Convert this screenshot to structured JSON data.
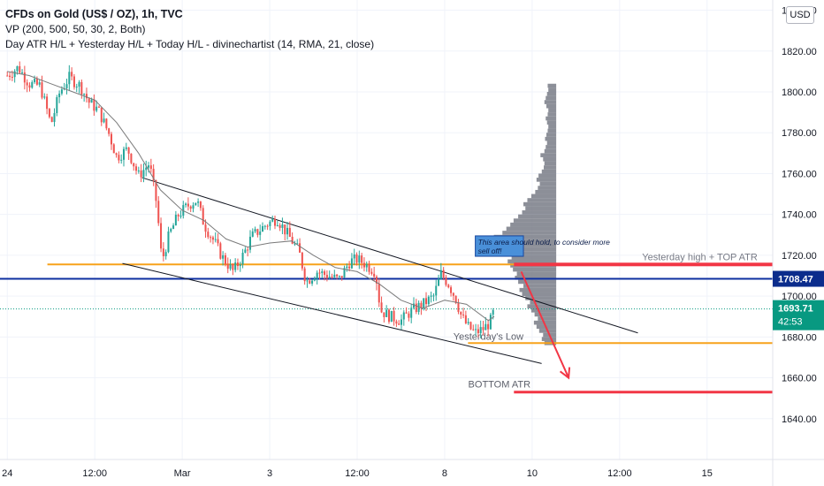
{
  "header": {
    "symbol": "CFDs on Gold (US$ / OZ), 1h, TVC",
    "indicator_vp": "VP (200, 500, 50, 30, 2, Both)",
    "indicator_atr": "Day ATR H/L + Yesterday H/L + Today H/L - divinechartist (14, RMA, 21, close)"
  },
  "currency_label": "USD",
  "colors": {
    "up": "#26a69a",
    "down": "#ef5350",
    "orange": "#f7a21b",
    "navy": "#0d2fa0",
    "red": "#f23645",
    "volume_profile": "#787b86",
    "ma": "#7b7b7b",
    "price_green": "#089981",
    "price_navy": "#0b2c8c"
  },
  "chart_data": {
    "type": "candlestick",
    "ylim": [
      1620,
      1845
    ],
    "y_ticks": [
      1640,
      1660,
      1680,
      1700,
      1720,
      1740,
      1760,
      1780,
      1800,
      1820,
      1840
    ],
    "x_tick_labels": [
      {
        "label": "24",
        "x": 0
      },
      {
        "label": "12:00",
        "x": 12
      },
      {
        "label": "Mar",
        "x": 24
      },
      {
        "label": "3",
        "x": 36
      },
      {
        "label": "12:00",
        "x": 48
      },
      {
        "label": "8",
        "x": 60
      },
      {
        "label": "10",
        "x": 72
      },
      {
        "label": "12:00",
        "x": 84
      },
      {
        "label": "15",
        "x": 96
      }
    ],
    "x_range": [
      -1,
      105
    ],
    "close_path": [
      [
        0,
        1808
      ],
      [
        1.5,
        1812
      ],
      [
        3,
        1804
      ],
      [
        4.5,
        1803
      ],
      [
        6,
        1784
      ],
      [
        7.2,
        1800
      ],
      [
        8.5,
        1807
      ],
      [
        10,
        1803
      ],
      [
        11.2,
        1795
      ],
      [
        12.5,
        1791
      ],
      [
        14,
        1779
      ],
      [
        15,
        1768
      ],
      [
        16.5,
        1772
      ],
      [
        18,
        1759
      ],
      [
        19.5,
        1765
      ],
      [
        20.5,
        1745
      ],
      [
        21.2,
        1717
      ],
      [
        22.2,
        1730
      ],
      [
        23.5,
        1740
      ],
      [
        25,
        1745
      ],
      [
        26,
        1747
      ],
      [
        27,
        1735
      ],
      [
        28.5,
        1726
      ],
      [
        29.5,
        1719
      ],
      [
        31,
        1712
      ],
      [
        32.5,
        1721
      ],
      [
        33.5,
        1729
      ],
      [
        34.5,
        1732
      ],
      [
        35.5,
        1735
      ],
      [
        37,
        1738
      ],
      [
        38.5,
        1730
      ],
      [
        40,
        1722
      ],
      [
        41,
        1707
      ],
      [
        42.5,
        1712
      ],
      [
        44,
        1710
      ],
      [
        45.5,
        1708
      ],
      [
        47,
        1717
      ],
      [
        48,
        1718
      ],
      [
        49,
        1716
      ],
      [
        50.5,
        1712
      ],
      [
        51.2,
        1693
      ],
      [
        52.5,
        1690
      ],
      [
        54,
        1688
      ],
      [
        55.5,
        1693
      ],
      [
        57,
        1696
      ],
      [
        58.5,
        1700
      ],
      [
        59.5,
        1711
      ],
      [
        60.5,
        1706
      ],
      [
        61.5,
        1699
      ],
      [
        62.3,
        1690
      ],
      [
        63.2,
        1685
      ],
      [
        64.2,
        1682
      ],
      [
        65.3,
        1684
      ],
      [
        66.2,
        1687
      ],
      [
        66.8,
        1693
      ]
    ],
    "ma_path": [
      [
        0,
        1810
      ],
      [
        3,
        1808
      ],
      [
        6,
        1804
      ],
      [
        9,
        1800
      ],
      [
        12,
        1796
      ],
      [
        15,
        1785
      ],
      [
        18,
        1770
      ],
      [
        21,
        1752
      ],
      [
        24,
        1742
      ],
      [
        27,
        1737
      ],
      [
        30,
        1728
      ],
      [
        33,
        1724
      ],
      [
        36,
        1726
      ],
      [
        39,
        1727
      ],
      [
        42,
        1720
      ],
      [
        45,
        1714
      ],
      [
        48,
        1712
      ],
      [
        51,
        1706
      ],
      [
        54,
        1698
      ],
      [
        57,
        1694
      ],
      [
        60,
        1698
      ],
      [
        63,
        1696
      ],
      [
        66,
        1688
      ],
      [
        66.8,
        1690
      ]
    ],
    "levels": [
      {
        "name": "yesterday-high-top-atr",
        "y": 1715.5,
        "label": "Yesterday high + TOP ATR"
      },
      {
        "name": "navy-level",
        "y": 1708.47,
        "label": "1708.47"
      },
      {
        "name": "yesterday-low",
        "y": 1677,
        "label": "Yesterday's Low"
      },
      {
        "name": "bottom-atr",
        "y": 1653,
        "label": "BOTTOM ATR"
      }
    ],
    "channel": {
      "upper": [
        [
          18.5,
          1758
        ],
        [
          86.5,
          1682
        ]
      ],
      "lower": [
        [
          15.8,
          1716
        ],
        [
          73.3,
          1667
        ]
      ]
    },
    "arrow": {
      "from": [
        70.5,
        1712
      ],
      "to": [
        77,
        1660
      ]
    },
    "annotation": "This area should hold, to consider more sell off!",
    "price_labels": {
      "level": "1708.47",
      "last": "1693.71",
      "countdown": "42:53"
    },
    "last_price": 1693.71,
    "volume_profile": {
      "price_bottom": 1676,
      "price_top": 1804,
      "base_x": 75.3,
      "max_width_x": 9.0,
      "widths": [
        0.18,
        0.22,
        0.2,
        0.26,
        0.3,
        0.34,
        0.28,
        0.33,
        0.38,
        0.44,
        0.4,
        0.47,
        0.52,
        0.56,
        0.5,
        0.58,
        0.63,
        0.6,
        0.66,
        0.7,
        0.74,
        0.68,
        0.77,
        0.84,
        0.9,
        1.0,
        0.95,
        0.82,
        0.76,
        0.7,
        0.65,
        0.58,
        0.52,
        0.47,
        0.5,
        0.44,
        0.38,
        0.32,
        0.28,
        0.25,
        0.3,
        0.27,
        0.22,
        0.19,
        0.18,
        0.2,
        0.24,
        0.18,
        0.16,
        0.14,
        0.17,
        0.15,
        0.13,
        0.12,
        0.14,
        0.16,
        0.13,
        0.12,
        0.15,
        0.18,
        0.16,
        0.14,
        0.12,
        0.13
      ]
    }
  }
}
